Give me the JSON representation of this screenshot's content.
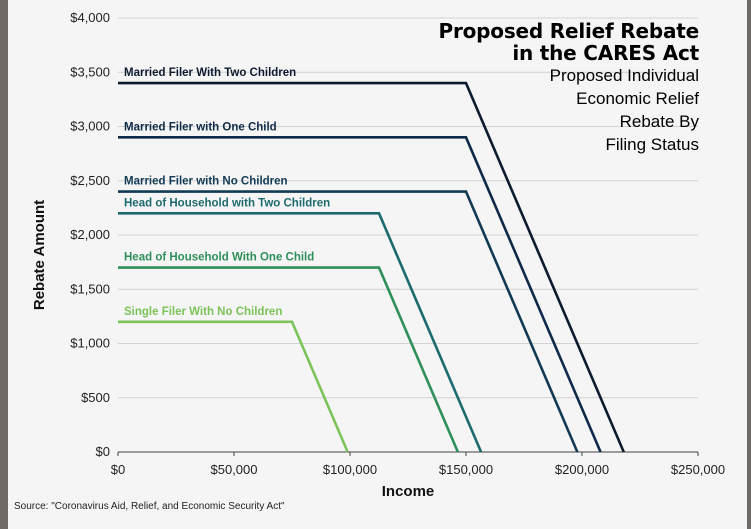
{
  "chart_data": {
    "type": "line",
    "title": [
      "Proposed Relief Rebate",
      "in the CARES Act"
    ],
    "subtitle": [
      "Proposed Individual",
      "Economic Relief",
      "Rebate By",
      "Filing Status"
    ],
    "xlabel": "Income",
    "ylabel": "Rebate Amount",
    "xlim": [
      0,
      250000
    ],
    "ylim": [
      0,
      4000
    ],
    "x_tick_labels": [
      "$0",
      "$50,000",
      "$100,000",
      "$150,000",
      "$200,000",
      "$250,000"
    ],
    "y_tick_labels": [
      "$0",
      "$500",
      "$1,000",
      "$1,500",
      "$2,000",
      "$2,500",
      "$3,000",
      "$3,500",
      "$4,000"
    ],
    "grid": true,
    "series": [
      {
        "name": "Married Filer With Two Children",
        "color": "#0d1b2e",
        "x": [
          0,
          150000,
          218000
        ],
        "y": [
          3400,
          3400,
          0
        ]
      },
      {
        "name": "Married Filer with One Child",
        "color": "#0f2a48",
        "x": [
          0,
          150000,
          208000
        ],
        "y": [
          2900,
          2900,
          0
        ]
      },
      {
        "name": "Married Filer with No Children",
        "color": "#123a54",
        "x": [
          0,
          150000,
          198000
        ],
        "y": [
          2400,
          2400,
          0
        ]
      },
      {
        "name": "Head of Household with Two Children",
        "color": "#1d6a6e",
        "x": [
          0,
          112500,
          156500
        ],
        "y": [
          2200,
          2200,
          0
        ]
      },
      {
        "name": "Head of Household With One Child",
        "color": "#2f8f5a",
        "x": [
          0,
          112500,
          146500
        ],
        "y": [
          1700,
          1700,
          0
        ]
      },
      {
        "name": "Single Filer With No Children",
        "color": "#7cc35a",
        "x": [
          0,
          75000,
          99000
        ],
        "y": [
          1200,
          1200,
          0
        ]
      }
    ]
  },
  "source": "Source: \"Coronavirus Aid, Relief, and Economic Security Act\""
}
